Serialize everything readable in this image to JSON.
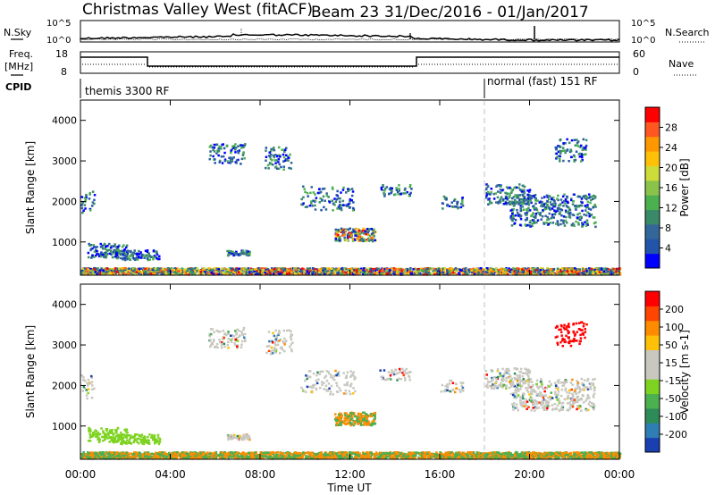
{
  "header": {
    "title": "Christmas Valley West (fitACF)",
    "beam": "Beam 23",
    "date_range": "31/Dec/2016 - 01/Jan/2017"
  },
  "status_panels": {
    "nsky_label": "N.Sky",
    "nsearch_label": "N.Search",
    "noise_tick_high": "10^5",
    "noise_tick_low": "10^0",
    "freq_label_line1": "Freq.",
    "freq_label_line2": "[MHz]",
    "freq_ticks": [
      "18",
      "8"
    ],
    "nave_ticks": [
      "60",
      "0"
    ],
    "nave_label": "Nave",
    "cpid_label": "CPID",
    "cpid_segments": [
      {
        "label": "themis 3300 RF",
        "start_hour": 0
      },
      {
        "label": "normal (fast) 151 RF",
        "start_hour": 18
      }
    ]
  },
  "chart_data": [
    {
      "type": "heatmap",
      "name": "power",
      "xlabel": "Time UT",
      "ylabel": "Slant Range [km]",
      "x_tick_labels": [
        "00:00",
        "04:00",
        "08:00",
        "12:00",
        "16:00",
        "20:00",
        "00:00"
      ],
      "x_range_hours": [
        0,
        24
      ],
      "y_ticks": [
        1000,
        2000,
        3000,
        4000
      ],
      "y_range_km": [
        180,
        4500
      ],
      "colorbar_label": "Power [dB]",
      "colorbar_ticks": [
        "28",
        "24",
        "20",
        "16",
        "12",
        "8",
        "4"
      ],
      "colorbar_colors": [
        "#0000ff",
        "#2255aa",
        "#336699",
        "#3a8a6a",
        "#4caf50",
        "#8bc34a",
        "#cddc39",
        "#ffc107",
        "#ff9800",
        "#ff5722",
        "#ff0000"
      ]
    },
    {
      "type": "heatmap",
      "name": "velocity",
      "xlabel": "Time UT",
      "ylabel": "Slant Range [km]",
      "x_tick_labels": [
        "00:00",
        "04:00",
        "08:00",
        "12:00",
        "16:00",
        "20:00",
        "00:00"
      ],
      "x_range_hours": [
        0,
        24
      ],
      "y_ticks": [
        1000,
        2000,
        3000,
        4000
      ],
      "y_range_km": [
        180,
        4500
      ],
      "colorbar_label": "Velocity [m s-1]",
      "colorbar_ticks": [
        "200",
        "100",
        "50",
        "15",
        "-15",
        "-50",
        "-100",
        "-200"
      ],
      "colorbar_colors": [
        "#1a3fb0",
        "#2e7db5",
        "#2e8b57",
        "#4caf50",
        "#7ed321",
        "#c8c8c0",
        "#c8c8c0",
        "#ffc107",
        "#ff8c00",
        "#ff4500",
        "#ff0000"
      ]
    }
  ]
}
